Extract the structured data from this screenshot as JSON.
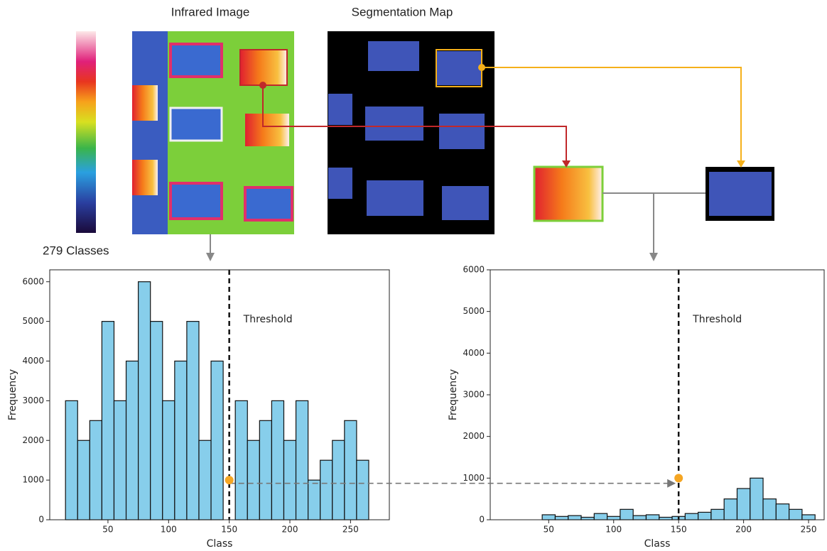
{
  "labels": {
    "infrared": "Infrared Image",
    "segmentation": "Segmentation Map",
    "classes": "279 Classes"
  },
  "chart_data": [
    {
      "type": "histogram",
      "xlabel": "Class",
      "ylabel": "Frequency",
      "color": "#87ceeb",
      "bins": [
        15,
        25,
        35,
        45,
        55,
        65,
        75,
        85,
        95,
        105,
        115,
        125,
        135,
        145,
        155,
        165,
        175,
        185,
        195,
        205,
        215,
        225,
        235,
        245,
        255,
        265
      ],
      "counts": [
        3000,
        2000,
        2500,
        5000,
        3000,
        4000,
        6000,
        5000,
        3000,
        4000,
        5000,
        2000,
        4000,
        0,
        3000,
        2000,
        2500,
        3000,
        2000,
        3000,
        1000,
        1500,
        2000,
        2500,
        1500
      ],
      "xlim": [
        2,
        282
      ],
      "ylim": [
        0,
        6300
      ],
      "xticks": [
        50,
        100,
        150,
        200,
        250
      ],
      "yticks": [
        0,
        1000,
        2000,
        3000,
        4000,
        5000,
        6000
      ],
      "threshold": {
        "value": 150,
        "label": "Threshold"
      },
      "marker": {
        "x": 150,
        "y": 1000,
        "color": "#f5a623"
      }
    },
    {
      "type": "histogram",
      "xlabel": "Class",
      "ylabel": "Frequency",
      "color": "#87ceeb",
      "bins": [
        45,
        55,
        65,
        75,
        85,
        95,
        105,
        115,
        125,
        135,
        145,
        155,
        165,
        175,
        185,
        195,
        205,
        215,
        225,
        235,
        245,
        255
      ],
      "counts": [
        120,
        80,
        100,
        60,
        150,
        80,
        250,
        100,
        120,
        60,
        80,
        150,
        180,
        250,
        500,
        750,
        1000,
        500,
        380,
        250,
        120
      ],
      "xlim": [
        5,
        262
      ],
      "ylim": [
        0,
        6000
      ],
      "xticks": [
        50,
        100,
        150,
        200,
        250
      ],
      "yticks": [
        0,
        1000,
        2000,
        3000,
        4000,
        5000,
        6000
      ],
      "threshold": {
        "value": 150,
        "label": "Threshold"
      },
      "marker": {
        "x": 150,
        "y": 1000,
        "color": "#f5a623"
      }
    }
  ]
}
